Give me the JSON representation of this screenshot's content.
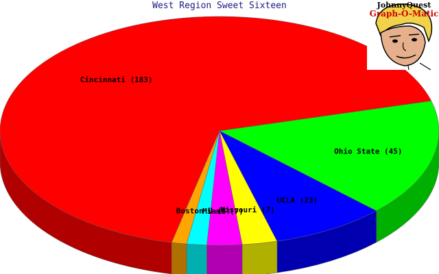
{
  "chart_data": {
    "type": "pie",
    "title": "West Region Sweet Sixteen",
    "start_angle_deg": 15.2,
    "slices": [
      {
        "name": "Ohio State",
        "value": 45,
        "label": "Ohio State (45)",
        "color": "#00ff00",
        "side": "#00b000"
      },
      {
        "name": "UCLA",
        "value": 23,
        "label": "UCLA (23)",
        "color": "#0000ff",
        "side": "#0000b0"
      },
      {
        "name": "Missouri",
        "value": 7,
        "label": "Missouri (7)",
        "color": "#ffff00",
        "side": "#b0b000"
      },
      {
        "name": "Miami",
        "value": 7,
        "label": "Miami (7)",
        "color": "#ff00ff",
        "side": "#b000b0"
      },
      {
        "name": "Boston U",
        "value": 4,
        "label": "Boston U (4)",
        "color": "#00ffff",
        "side": "#00b0b0"
      },
      {
        "name": "",
        "value": 3,
        "label": "",
        "color": "#ffa500",
        "side": "#b07000"
      },
      {
        "name": "Cincinnati",
        "value": 183,
        "label": "Cincinnati (183)",
        "color": "#ff0000",
        "side": "#b00000"
      }
    ]
  },
  "branding": {
    "line1": "JohnnyQuest",
    "line2": "Graph-O-Matic"
  }
}
